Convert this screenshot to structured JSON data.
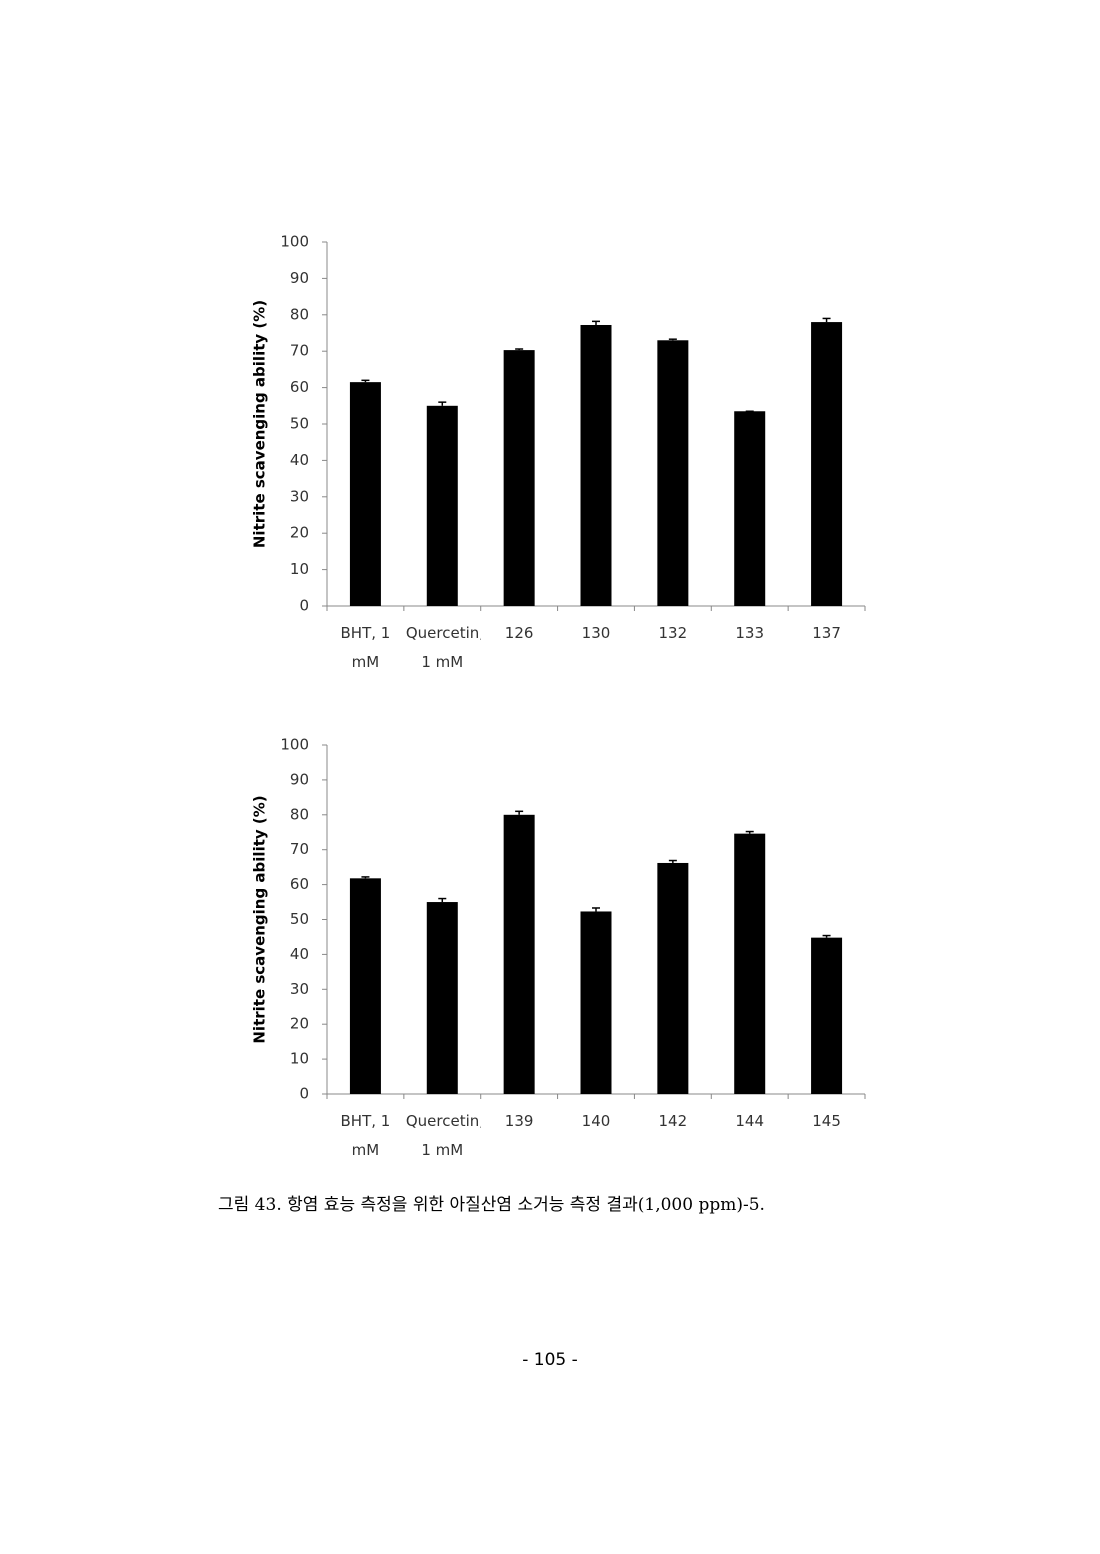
{
  "chart_data": [
    {
      "type": "bar",
      "ylabel": "Nitrite scavenging ability (%)",
      "categories": [
        "BHT, 1 mM",
        "Quercetin, 1 mM",
        "126",
        "130",
        "132",
        "133",
        "137"
      ],
      "values": [
        61.5,
        55,
        70.3,
        77.2,
        73,
        53.5,
        78
      ],
      "errors": [
        0.5,
        1,
        0.3,
        1,
        0.3,
        0,
        1
      ],
      "color": "#000000",
      "ylim": [
        0,
        100
      ],
      "yticks": [
        0,
        10,
        20,
        30,
        40,
        50,
        60,
        70,
        80,
        90,
        100
      ],
      "grid": false
    },
    {
      "type": "bar",
      "ylabel": "Nitrite scavenging ability (%)",
      "categories": [
        "BHT, 1 mM",
        "Quercetin, 1 mM",
        "139",
        "140",
        "142",
        "144",
        "145"
      ],
      "values": [
        61.8,
        55,
        80,
        52.3,
        66.2,
        74.6,
        44.8
      ],
      "errors": [
        0.4,
        1,
        1,
        1,
        0.7,
        0.6,
        0.6
      ],
      "color": "#000000",
      "ylim": [
        0,
        100
      ],
      "yticks": [
        0,
        10,
        20,
        30,
        40,
        50,
        60,
        70,
        80,
        90,
        100
      ],
      "grid": false
    }
  ],
  "caption": "그림 43. 항염 효능 측정을 위한 아질산염 소거능 측정 결과(1,000 ppm)-5.",
  "page_number": "- 105 -"
}
